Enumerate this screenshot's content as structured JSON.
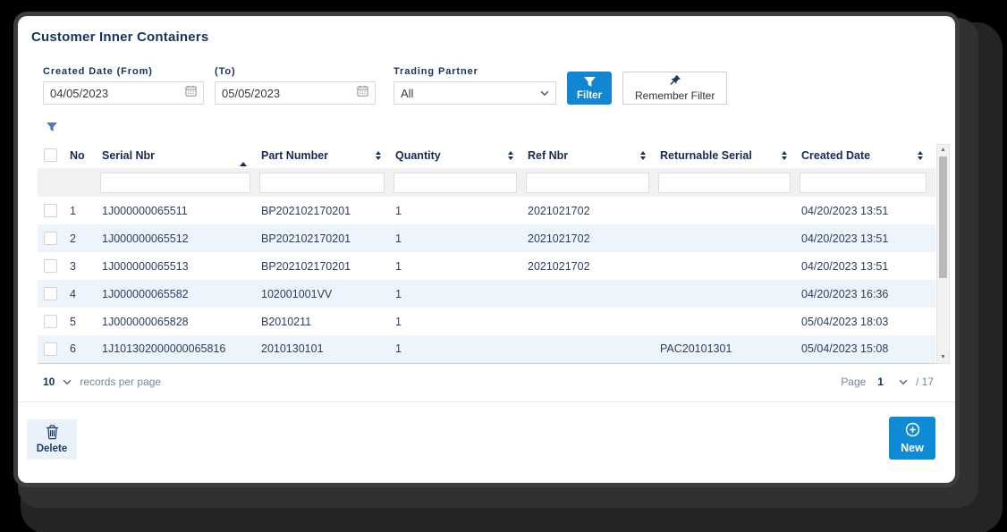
{
  "page": {
    "title": "Customer Inner Containers"
  },
  "filters": {
    "created_from": {
      "label": "Created Date (From)",
      "value": "04/05/2023"
    },
    "created_to": {
      "label": "(To)",
      "value": "05/05/2023"
    },
    "trading_partner": {
      "label": "Trading Partner",
      "value": "All"
    },
    "filter_button": "Filter",
    "remember_filter_button": "Remember Filter"
  },
  "table": {
    "columns": [
      {
        "label": "No",
        "sort": "none"
      },
      {
        "label": "Serial Nbr",
        "sort": "asc"
      },
      {
        "label": "Part Number",
        "sort": "both"
      },
      {
        "label": "Quantity",
        "sort": "both"
      },
      {
        "label": "Ref Nbr",
        "sort": "both"
      },
      {
        "label": "Returnable Serial",
        "sort": "both"
      },
      {
        "label": "Created Date",
        "sort": "both"
      }
    ],
    "rows": [
      [
        "1",
        "1J000000065511",
        "BP202102170201",
        "1",
        "2021021702",
        "",
        "04/20/2023 13:51"
      ],
      [
        "2",
        "1J000000065512",
        "BP202102170201",
        "1",
        "2021021702",
        "",
        "04/20/2023 13:51"
      ],
      [
        "3",
        "1J000000065513",
        "BP202102170201",
        "1",
        "2021021702",
        "",
        "04/20/2023 13:51"
      ],
      [
        "4",
        "1J000000065582",
        "102001001VV",
        "1",
        "",
        "",
        "04/20/2023 16:36"
      ],
      [
        "5",
        "1J000000065828",
        "B2010211",
        "1",
        "",
        "",
        "05/04/2023 18:03"
      ],
      [
        "6",
        "1J101302000000065816",
        "2010130101",
        "1",
        "",
        "PAC20101301",
        "05/04/2023 15:08"
      ]
    ]
  },
  "pagination": {
    "page_size": "10",
    "records_label": "records per page",
    "page_label": "Page",
    "current_page": "1",
    "total_pages_label": "/ 17"
  },
  "footer": {
    "delete_button": "Delete",
    "new_button": "New"
  },
  "icons": {
    "calendar": "calendar-icon",
    "chevron": "chevron-down-icon",
    "funnel": "funnel-icon",
    "pin": "pin-icon",
    "trash": "trash-icon",
    "plus_circle": "plus-circle-icon"
  },
  "colors": {
    "accent_blue": "#1286d2",
    "title_navy": "#17325e",
    "row_alt": "#edf4fc",
    "delete_bg": "#e9f1fb"
  }
}
